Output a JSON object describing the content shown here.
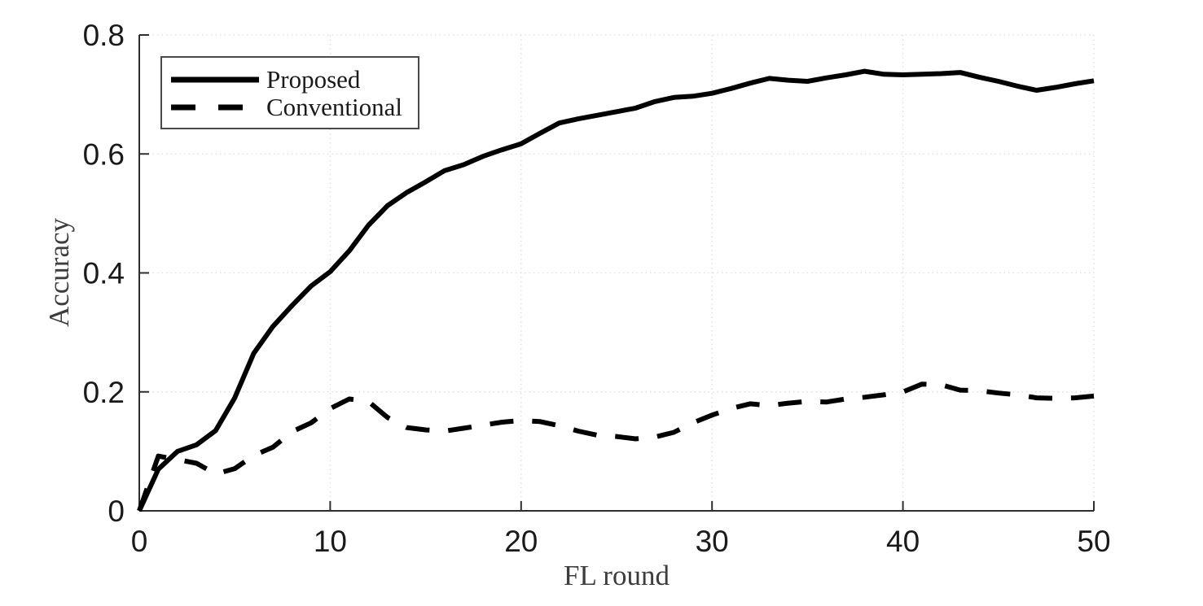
{
  "chart_data": {
    "type": "line",
    "title": "",
    "xlabel": "FL round",
    "ylabel": "Accuracy",
    "xlim": [
      0,
      50
    ],
    "ylim": [
      0,
      0.8
    ],
    "xticks": [
      0,
      10,
      20,
      30,
      40,
      50
    ],
    "xtick_labels": [
      "0",
      "10",
      "20",
      "30",
      "40",
      "50"
    ],
    "yticks": [
      0,
      0.2,
      0.4,
      0.6,
      0.8
    ],
    "ytick_labels": [
      "0",
      "0.2",
      "0.4",
      "0.6",
      "0.8"
    ],
    "grid": "dotted",
    "box": "off",
    "x": [
      0,
      1,
      2,
      3,
      4,
      5,
      6,
      7,
      8,
      9,
      10,
      11,
      12,
      13,
      14,
      15,
      16,
      17,
      18,
      19,
      20,
      21,
      22,
      23,
      24,
      25,
      26,
      27,
      28,
      29,
      30,
      31,
      32,
      33,
      34,
      35,
      36,
      37,
      38,
      39,
      40,
      41,
      42,
      43,
      44,
      45,
      46,
      47,
      48,
      49,
      50
    ],
    "series": [
      {
        "name": "Proposed",
        "style": "solid",
        "color": "#000000",
        "values": [
          0,
          0.07,
          0.1,
          0.111,
          0.135,
          0.19,
          0.265,
          0.31,
          0.345,
          0.378,
          0.402,
          0.437,
          0.48,
          0.513,
          0.535,
          0.553,
          0.572,
          0.582,
          0.596,
          0.607,
          0.617,
          0.635,
          0.652,
          0.659,
          0.665,
          0.671,
          0.677,
          0.688,
          0.695,
          0.697,
          0.702,
          0.71,
          0.719,
          0.727,
          0.724,
          0.722,
          0.728,
          0.733,
          0.739,
          0.734,
          0.733,
          0.734,
          0.735,
          0.737,
          0.729,
          0.722,
          0.714,
          0.707,
          0.712,
          0.718,
          0.723
        ]
      },
      {
        "name": "Conventional",
        "style": "dashed",
        "color": "#000000",
        "values": [
          0,
          0.092,
          0.086,
          0.08,
          0.062,
          0.071,
          0.093,
          0.107,
          0.133,
          0.148,
          0.172,
          0.188,
          0.184,
          0.157,
          0.14,
          0.136,
          0.134,
          0.139,
          0.144,
          0.149,
          0.152,
          0.15,
          0.143,
          0.134,
          0.127,
          0.125,
          0.121,
          0.124,
          0.132,
          0.148,
          0.161,
          0.172,
          0.18,
          0.177,
          0.181,
          0.184,
          0.183,
          0.188,
          0.191,
          0.195,
          0.2,
          0.213,
          0.212,
          0.203,
          0.202,
          0.198,
          0.195,
          0.19,
          0.189,
          0.19,
          0.193
        ]
      }
    ],
    "legend": {
      "position": "top-left",
      "entries": [
        "Proposed",
        "Conventional"
      ]
    },
    "colors": {
      "line": "#000000",
      "axis": "#2e2e2e",
      "tick_label": "#1a1a1a",
      "axis_label": "#3d3d3d",
      "grid": "#dcdcdc",
      "legend_border": "#4a4a4a",
      "background": "#ffffff"
    }
  }
}
